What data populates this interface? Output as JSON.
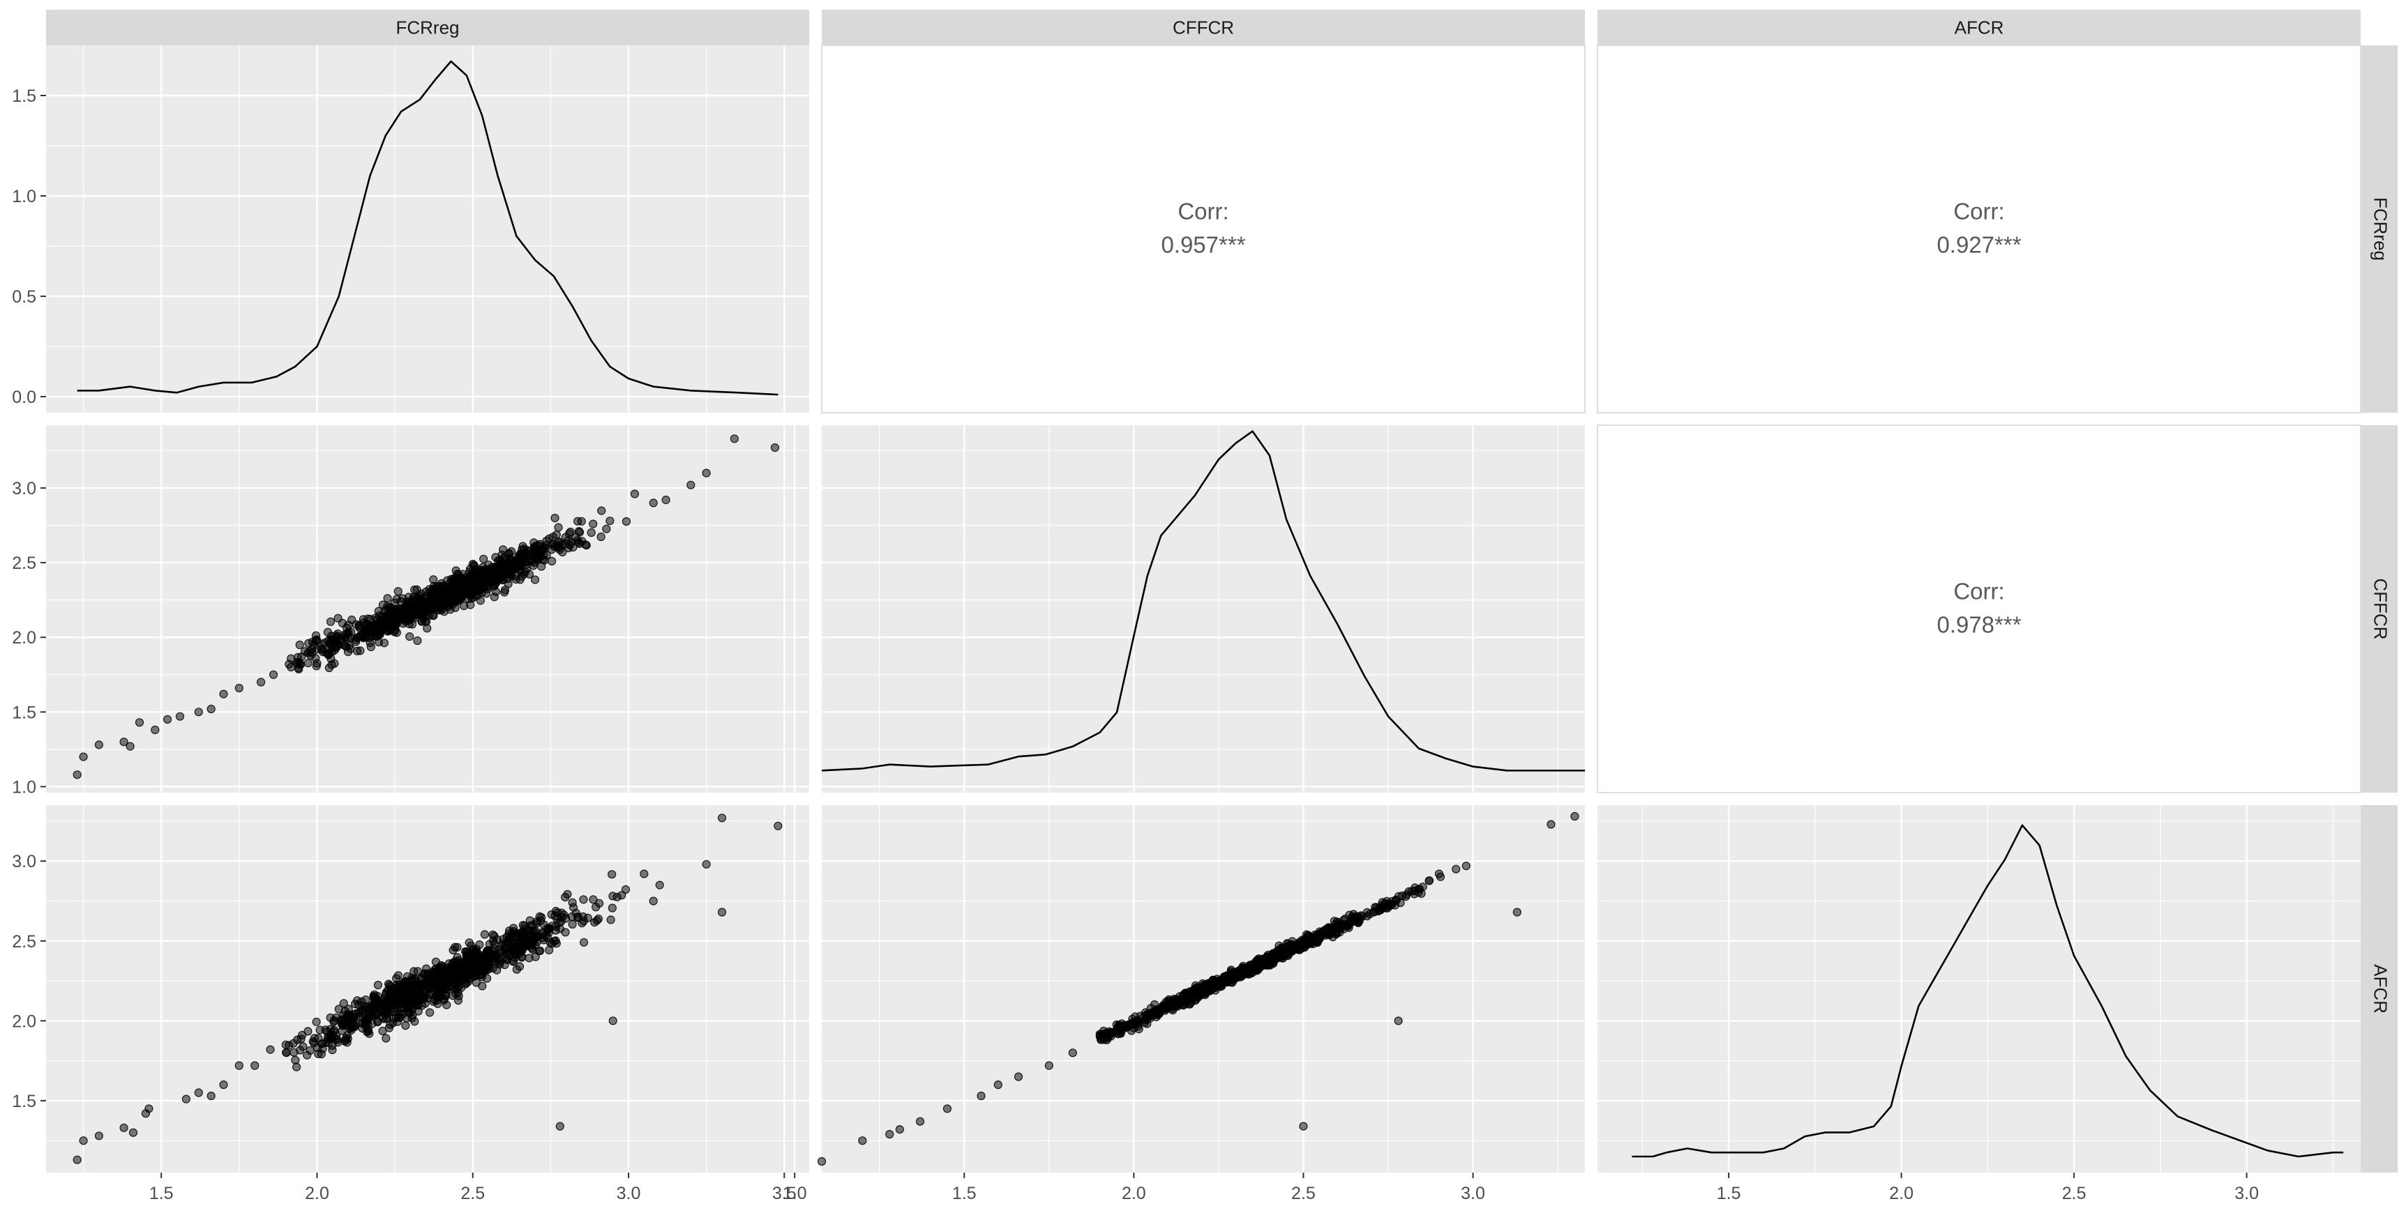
{
  "chart_data": {
    "type": "scatter-matrix",
    "variables": [
      "FCRreg",
      "CFFCR",
      "AFCR"
    ],
    "strip_labels": {
      "top": [
        "FCRreg",
        "CFFCR",
        "AFCR"
      ],
      "right": [
        "FCRreg",
        "CFFCR",
        "AFCR"
      ]
    },
    "x_ranges": [
      [
        1.13,
        3.58
      ],
      [
        1.08,
        3.33
      ],
      [
        1.12,
        3.33
      ]
    ],
    "x_ticks": [
      [
        "1.5",
        "2.0",
        "2.5",
        "3.0",
        "3.5"
      ],
      [
        "1.0",
        "1.5",
        "2.0",
        "2.5",
        "3.0"
      ],
      [
        "1.5",
        "2.0",
        "2.5",
        "3.0"
      ]
    ],
    "y_axes": [
      {
        "range": [
          -0.08,
          1.75
        ],
        "ticks": [
          "0.0",
          "0.5",
          "1.0",
          "1.5"
        ]
      },
      {
        "range": [
          0.96,
          3.42
        ],
        "ticks": [
          "1.0",
          "1.5",
          "2.0",
          "2.5",
          "3.0"
        ]
      },
      {
        "range": [
          1.05,
          3.35
        ],
        "ticks": [
          "1.5",
          "2.0",
          "2.5",
          "3.0"
        ]
      }
    ],
    "correlations": [
      {
        "row": 0,
        "col": 1,
        "label": "Corr:",
        "value": "0.957***"
      },
      {
        "row": 0,
        "col": 2,
        "label": "Corr:",
        "value": "0.927***"
      },
      {
        "row": 1,
        "col": 2,
        "label": "Corr:",
        "value": "0.978***"
      }
    ],
    "densities": [
      {
        "name": "FCRreg",
        "ylim": [
          -0.08,
          1.75
        ],
        "points": [
          [
            1.23,
            0.03
          ],
          [
            1.3,
            0.03
          ],
          [
            1.4,
            0.05
          ],
          [
            1.48,
            0.03
          ],
          [
            1.55,
            0.02
          ],
          [
            1.62,
            0.05
          ],
          [
            1.7,
            0.07
          ],
          [
            1.79,
            0.07
          ],
          [
            1.87,
            0.1
          ],
          [
            1.93,
            0.15
          ],
          [
            2.0,
            0.25
          ],
          [
            2.07,
            0.5
          ],
          [
            2.12,
            0.8
          ],
          [
            2.17,
            1.1
          ],
          [
            2.22,
            1.3
          ],
          [
            2.27,
            1.42
          ],
          [
            2.33,
            1.48
          ],
          [
            2.38,
            1.58
          ],
          [
            2.43,
            1.67
          ],
          [
            2.48,
            1.6
          ],
          [
            2.53,
            1.4
          ],
          [
            2.58,
            1.1
          ],
          [
            2.64,
            0.8
          ],
          [
            2.7,
            0.68
          ],
          [
            2.76,
            0.6
          ],
          [
            2.82,
            0.45
          ],
          [
            2.88,
            0.28
          ],
          [
            2.94,
            0.15
          ],
          [
            3.0,
            0.09
          ],
          [
            3.08,
            0.05
          ],
          [
            3.2,
            0.03
          ],
          [
            3.35,
            0.02
          ],
          [
            3.48,
            0.01
          ]
        ]
      },
      {
        "name": "CFFCR",
        "ylim": [
          -0.08,
          1.75
        ],
        "points": [
          [
            1.08,
            0.03
          ],
          [
            1.2,
            0.04
          ],
          [
            1.28,
            0.06
          ],
          [
            1.4,
            0.05
          ],
          [
            1.57,
            0.06
          ],
          [
            1.66,
            0.1
          ],
          [
            1.74,
            0.11
          ],
          [
            1.82,
            0.15
          ],
          [
            1.9,
            0.22
          ],
          [
            1.95,
            0.32
          ],
          [
            2.0,
            0.7
          ],
          [
            2.04,
            1.0
          ],
          [
            2.08,
            1.2
          ],
          [
            2.12,
            1.28
          ],
          [
            2.18,
            1.4
          ],
          [
            2.25,
            1.58
          ],
          [
            2.3,
            1.66
          ],
          [
            2.35,
            1.72
          ],
          [
            2.4,
            1.6
          ],
          [
            2.45,
            1.28
          ],
          [
            2.52,
            1.0
          ],
          [
            2.6,
            0.76
          ],
          [
            2.68,
            0.5
          ],
          [
            2.75,
            0.3
          ],
          [
            2.84,
            0.14
          ],
          [
            2.92,
            0.09
          ],
          [
            3.0,
            0.05
          ],
          [
            3.1,
            0.03
          ],
          [
            3.22,
            0.03
          ],
          [
            3.33,
            0.03
          ]
        ]
      },
      {
        "name": "AFCR",
        "ylim": [
          -0.08,
          1.75
        ],
        "points": [
          [
            1.22,
            0.0
          ],
          [
            1.28,
            0.0
          ],
          [
            1.32,
            0.02
          ],
          [
            1.38,
            0.04
          ],
          [
            1.45,
            0.02
          ],
          [
            1.52,
            0.02
          ],
          [
            1.6,
            0.02
          ],
          [
            1.66,
            0.04
          ],
          [
            1.72,
            0.1
          ],
          [
            1.78,
            0.12
          ],
          [
            1.85,
            0.12
          ],
          [
            1.92,
            0.15
          ],
          [
            1.97,
            0.25
          ],
          [
            2.0,
            0.45
          ],
          [
            2.05,
            0.75
          ],
          [
            2.1,
            0.9
          ],
          [
            2.15,
            1.05
          ],
          [
            2.2,
            1.2
          ],
          [
            2.25,
            1.35
          ],
          [
            2.3,
            1.48
          ],
          [
            2.35,
            1.65
          ],
          [
            2.4,
            1.55
          ],
          [
            2.45,
            1.25
          ],
          [
            2.5,
            1.0
          ],
          [
            2.58,
            0.75
          ],
          [
            2.65,
            0.5
          ],
          [
            2.72,
            0.33
          ],
          [
            2.8,
            0.2
          ],
          [
            2.9,
            0.13
          ],
          [
            2.98,
            0.08
          ],
          [
            3.06,
            0.03
          ],
          [
            3.15,
            0.0
          ],
          [
            3.25,
            0.02
          ],
          [
            3.28,
            0.02
          ]
        ]
      }
    ],
    "scatter": [
      {
        "row": 1,
        "col": 0,
        "x": "FCRreg",
        "y": "CFFCR",
        "trend": {
          "slope": 0.93,
          "intercept": 0.04,
          "spread": 0.055
        },
        "x_mean": 2.4,
        "x_sd": 0.22,
        "n": 900,
        "points": [
          [
            1.23,
            1.08
          ],
          [
            1.25,
            1.2
          ],
          [
            1.3,
            1.28
          ],
          [
            1.38,
            1.3
          ],
          [
            1.4,
            1.27
          ],
          [
            1.43,
            1.43
          ],
          [
            1.48,
            1.38
          ],
          [
            1.52,
            1.45
          ],
          [
            1.56,
            1.47
          ],
          [
            1.62,
            1.5
          ],
          [
            1.66,
            1.52
          ],
          [
            1.7,
            1.62
          ],
          [
            1.75,
            1.66
          ],
          [
            1.82,
            1.7
          ],
          [
            1.86,
            1.75
          ],
          [
            1.91,
            1.82
          ],
          [
            3.2,
            3.02
          ],
          [
            3.25,
            3.1
          ],
          [
            3.34,
            3.33
          ],
          [
            3.47,
            3.27
          ],
          [
            3.02,
            2.96
          ],
          [
            3.08,
            2.9
          ],
          [
            3.12,
            2.92
          ],
          [
            1.95,
            1.87
          ],
          [
            2.0,
            1.92
          ]
        ]
      },
      {
        "row": 2,
        "col": 0,
        "x": "FCRreg",
        "y": "AFCR",
        "trend": {
          "slope": 0.92,
          "intercept": 0.05,
          "spread": 0.065
        },
        "x_mean": 2.4,
        "x_sd": 0.22,
        "n": 900,
        "points": [
          [
            1.23,
            1.13
          ],
          [
            1.25,
            1.25
          ],
          [
            1.3,
            1.28
          ],
          [
            1.38,
            1.33
          ],
          [
            1.41,
            1.3
          ],
          [
            1.45,
            1.42
          ],
          [
            1.46,
            1.45
          ],
          [
            1.58,
            1.51
          ],
          [
            1.62,
            1.55
          ],
          [
            1.66,
            1.53
          ],
          [
            1.7,
            1.6
          ],
          [
            1.75,
            1.72
          ],
          [
            1.8,
            1.72
          ],
          [
            1.85,
            1.82
          ],
          [
            1.9,
            1.85
          ],
          [
            3.3,
            3.27
          ],
          [
            3.48,
            3.22
          ],
          [
            3.25,
            2.98
          ],
          [
            3.3,
            2.68
          ],
          [
            2.95,
            2.0
          ],
          [
            2.78,
            1.34
          ],
          [
            3.1,
            2.85
          ],
          [
            3.08,
            2.75
          ],
          [
            3.05,
            2.92
          ]
        ]
      },
      {
        "row": 2,
        "col": 1,
        "x": "CFFCR",
        "y": "AFCR",
        "trend": {
          "slope": 0.985,
          "intercept": 0.02,
          "spread": 0.018
        },
        "x_mean": 2.3,
        "x_sd": 0.22,
        "n": 900,
        "points": [
          [
            1.08,
            1.12
          ],
          [
            1.2,
            1.25
          ],
          [
            1.28,
            1.29
          ],
          [
            1.31,
            1.32
          ],
          [
            1.37,
            1.37
          ],
          [
            1.45,
            1.45
          ],
          [
            1.55,
            1.53
          ],
          [
            1.6,
            1.6
          ],
          [
            1.66,
            1.65
          ],
          [
            1.75,
            1.72
          ],
          [
            1.82,
            1.8
          ],
          [
            3.23,
            3.23
          ],
          [
            3.3,
            3.28
          ],
          [
            3.13,
            2.68
          ],
          [
            2.78,
            2.0
          ],
          [
            2.5,
            1.34
          ],
          [
            2.98,
            2.97
          ],
          [
            2.95,
            2.95
          ],
          [
            2.9,
            2.92
          ]
        ]
      }
    ]
  }
}
